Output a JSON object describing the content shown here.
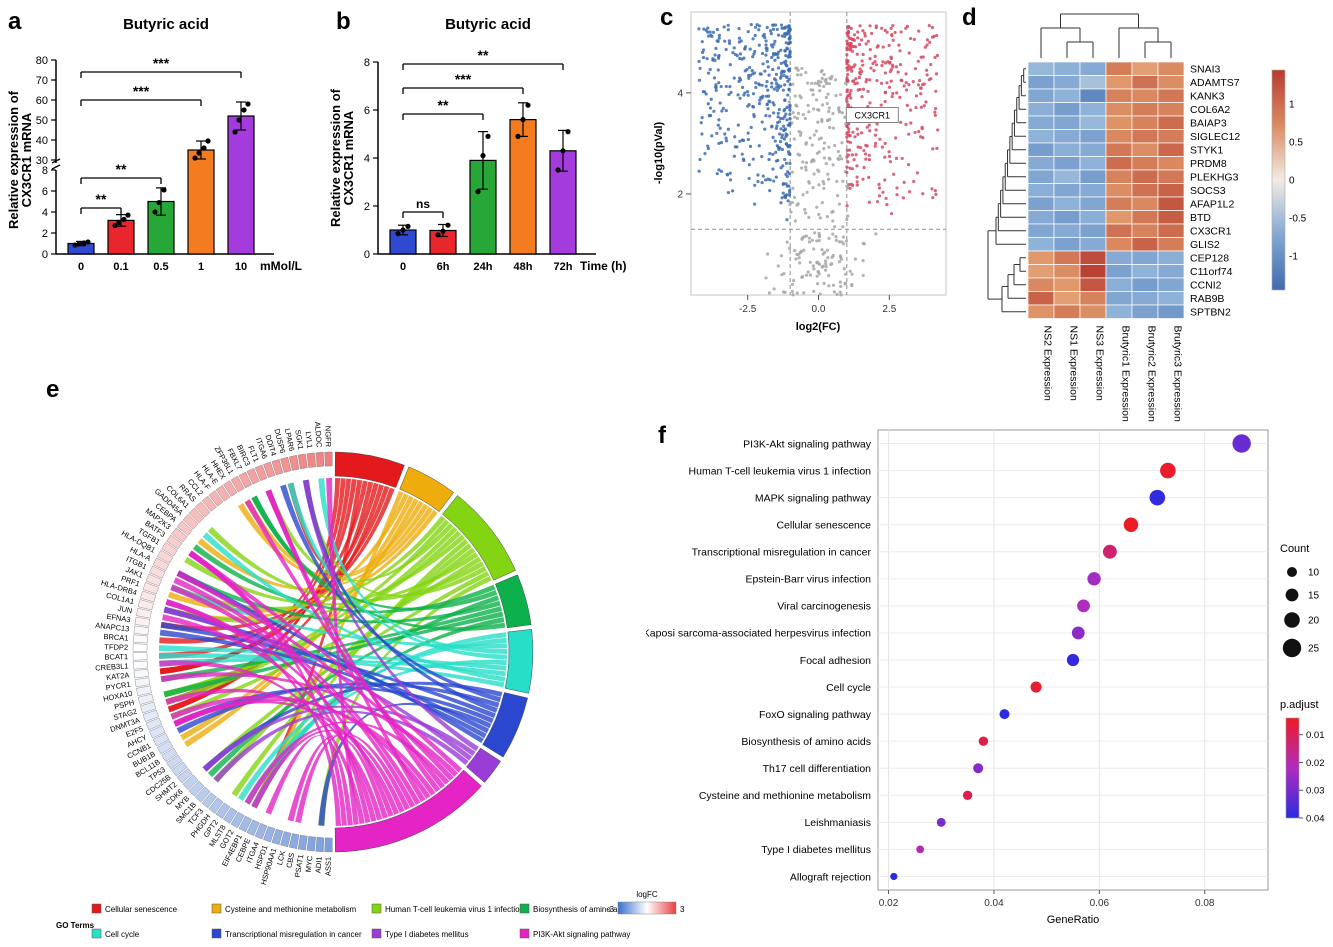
{
  "panel_labels": {
    "a": "a",
    "b": "b",
    "c": "c",
    "d": "d",
    "e": "e",
    "f": "f"
  },
  "chart_data": [
    {
      "id": "a",
      "type": "bar",
      "title": "Butyric acid",
      "ylabel_lines": [
        "Relative expression of",
        "CX3CR1 mRNA"
      ],
      "xlabel": "mMol/L",
      "categories": [
        "0",
        "0.1",
        "0.5",
        "1",
        "10"
      ],
      "values": [
        1.0,
        3.2,
        5.0,
        35,
        52
      ],
      "errors": [
        0.2,
        0.55,
        1.3,
        4.5,
        7
      ],
      "points": [
        [
          0.85,
          0.95,
          1.05,
          1.15
        ],
        [
          2.7,
          3.0,
          3.3,
          3.7
        ],
        [
          4.0,
          4.9,
          6.1
        ],
        [
          31,
          33.5,
          36,
          39.5
        ],
        [
          44,
          50,
          55,
          58
        ]
      ],
      "bar_colors": [
        "#2f49d1",
        "#e8262c",
        "#27a737",
        "#f47c20",
        "#a43bdd"
      ],
      "axis_break": {
        "lower": [
          0,
          8
        ],
        "upper": [
          30,
          80
        ],
        "lower_ticks": [
          0,
          2,
          4,
          6,
          8
        ],
        "upper_ticks": [
          30,
          40,
          50,
          60,
          70,
          80
        ]
      },
      "significance": [
        {
          "from": 0,
          "to": 1,
          "label": "**"
        },
        {
          "from": 0,
          "to": 2,
          "label": "**"
        },
        {
          "from": 0,
          "to": 3,
          "label": "***"
        },
        {
          "from": 0,
          "to": 4,
          "label": "***"
        }
      ]
    },
    {
      "id": "b",
      "type": "bar",
      "title": "Butyric acid",
      "ylabel_lines": [
        "Relative expression of",
        "CX3CR1 mRNA"
      ],
      "xlabel": "Time (h)",
      "categories": [
        "0",
        "6h",
        "24h",
        "48h",
        "72h"
      ],
      "values": [
        1.0,
        0.98,
        3.9,
        5.6,
        4.3
      ],
      "errors": [
        0.2,
        0.25,
        1.2,
        0.7,
        0.85
      ],
      "points": [
        [
          0.85,
          1.0,
          1.15
        ],
        [
          0.8,
          0.95,
          1.2
        ],
        [
          2.6,
          4.1,
          4.9
        ],
        [
          4.9,
          5.6,
          6.2
        ],
        [
          3.5,
          4.3,
          5.1
        ]
      ],
      "bar_colors": [
        "#2f49d1",
        "#e8262c",
        "#27a737",
        "#f47c20",
        "#a43bdd"
      ],
      "ylim": [
        0,
        8
      ],
      "y_ticks": [
        0,
        2,
        4,
        6,
        8
      ],
      "significance": [
        {
          "from": 0,
          "to": 1,
          "label": "ns"
        },
        {
          "from": 0,
          "to": 2,
          "label": "**"
        },
        {
          "from": 0,
          "to": 3,
          "label": "***"
        },
        {
          "from": 0,
          "to": 4,
          "label": "**"
        }
      ]
    },
    {
      "id": "c",
      "type": "scatter",
      "subtype": "volcano",
      "xlabel": "log2(FC)",
      "ylabel": "-log10(pVal)",
      "xlim": [
        -4.5,
        4.5
      ],
      "ylim": [
        0,
        5.6
      ],
      "x_ticks": [
        -2.5,
        0.0,
        2.5
      ],
      "x_tick_labels": [
        "-2.5",
        "0.0",
        "2.5"
      ],
      "y_ticks": [
        2,
        4
      ],
      "thresholds": {
        "x": [
          -1,
          1
        ],
        "y": 1.3
      },
      "annotation": {
        "label": "CX3CR1",
        "x": 1.05,
        "y": 3.55
      },
      "groups": [
        {
          "name": "down",
          "color": "#3d6cb3",
          "count": 420
        },
        {
          "name": "up",
          "color": "#d44a62",
          "count": 330
        },
        {
          "name": "ns",
          "color": "#a6a6a6",
          "count": 280
        }
      ],
      "seed": 42
    },
    {
      "id": "d",
      "type": "heatmap",
      "rows": [
        "SNAI3",
        "ADAMTS7",
        "KANK3",
        "COL6A2",
        "BAIAP3",
        "SIGLEC12",
        "STYK1",
        "PRDM8",
        "PLEKHG3",
        "SOCS3",
        "AFAP1L2",
        "BTD",
        "CX3CR1",
        "GLIS2",
        "CEP128",
        "C11orf74",
        "CCNI2",
        "RAB9B",
        "SPTBN2"
      ],
      "columns": [
        "NS2 Expression",
        "NS1 Expression",
        "NS3 Expression",
        "Brutyric1 Expression",
        "Brutyric2 Expression",
        "Brutyric3 Expression"
      ],
      "matrix": [
        [
          -0.55,
          -0.62,
          -0.7,
          0.85,
          0.55,
          0.72
        ],
        [
          -0.8,
          -0.7,
          -0.45,
          0.6,
          0.95,
          0.7
        ],
        [
          -0.75,
          -0.6,
          -1.1,
          0.8,
          0.75,
          0.9
        ],
        [
          -0.65,
          -0.85,
          -0.6,
          0.7,
          0.85,
          0.8
        ],
        [
          -0.7,
          -0.75,
          -0.55,
          0.65,
          0.8,
          1.0
        ],
        [
          -0.6,
          -0.7,
          -0.8,
          0.75,
          0.9,
          0.85
        ],
        [
          -0.85,
          -0.65,
          -0.7,
          0.9,
          0.7,
          1.05
        ],
        [
          -0.7,
          -0.8,
          -0.6,
          1.0,
          0.85,
          0.75
        ],
        [
          -0.75,
          -0.55,
          -0.85,
          0.8,
          1.0,
          0.9
        ],
        [
          -0.65,
          -0.75,
          -0.7,
          0.7,
          0.95,
          1.1
        ],
        [
          -0.8,
          -0.6,
          -0.75,
          0.85,
          0.75,
          1.2
        ],
        [
          -0.7,
          -0.85,
          -0.65,
          0.6,
          0.9,
          1.15
        ],
        [
          -0.75,
          -0.7,
          -0.8,
          0.95,
          0.8,
          1.0
        ],
        [
          -0.6,
          -0.8,
          -0.7,
          0.75,
          1.1,
          0.85
        ],
        [
          0.6,
          0.9,
          1.3,
          -0.7,
          -0.75,
          -0.65
        ],
        [
          0.55,
          0.7,
          1.4,
          -0.8,
          -0.6,
          -0.7
        ],
        [
          0.75,
          0.6,
          1.2,
          -0.65,
          -0.85,
          -0.75
        ],
        [
          1.1,
          0.55,
          0.8,
          -0.75,
          -0.7,
          -0.6
        ],
        [
          0.65,
          0.85,
          0.7,
          -0.6,
          -0.8,
          -0.9
        ]
      ],
      "colorbar_ticks": [
        1,
        0.5,
        0,
        -0.5,
        -1
      ],
      "color_low": "#3a67ae",
      "color_mid": "#f2ece3",
      "color_high": "#b5372e"
    },
    {
      "id": "e",
      "type": "chord",
      "legend_title": "GO Terms",
      "genes": [
        "NGFR",
        "ALDOC",
        "LYL1",
        "SGK1",
        "LPAR6",
        "DUSP6",
        "DDIT4",
        "ITGA6",
        "FLT1",
        "BIRC3",
        "FBXL7",
        "ZFP36L1",
        "HHEX",
        "HLA-E",
        "HLA-F",
        "CCL2",
        "RRAS",
        "COL6A1",
        "GADD45A",
        "CEBPA",
        "MAP2K3",
        "BATF3",
        "TGFB1",
        "HLA-DQB1",
        "HLA-A",
        "ITGB1",
        "JAK1",
        "PRF1",
        "HLA-DRB4",
        "COL1A1",
        "JUN",
        "EFNA3",
        "ANAPC13",
        "BRCA1",
        "TFDP2",
        "BCAT1",
        "CREB3L1",
        "KAT2A",
        "PYCR1",
        "HOXA10",
        "PSPH",
        "STAG2",
        "DNMT3A",
        "E2F5",
        "AHCY",
        "CCNB1",
        "BUB1B",
        "BCL11B",
        "TP53",
        "CDC25B",
        "SHMT2",
        "CDK6",
        "MYB",
        "SMC1B",
        "TCF3",
        "PHGDH",
        "GPT2",
        "MLST8",
        "GOT2",
        "EIF4EBP1",
        "CEBPE",
        "ITGA4",
        "HSPD1",
        "HSP90AA1",
        "LCK",
        "CBS",
        "PSAT1",
        "MYC",
        "ADI1",
        "ASS1"
      ],
      "logfc_range": [
        2.0,
        -2.0
      ],
      "pathways": [
        {
          "name": "Cellular senescence",
          "color": "#e3191c",
          "frac": 0.12,
          "links": 11
        },
        {
          "name": "Cysteine and methionine metabolism",
          "color": "#eead0c",
          "frac": 0.09,
          "links": 8
        },
        {
          "name": "Human T-cell leukemia virus 1 infection",
          "color": "#83d412",
          "frac": 0.16,
          "links": 15
        },
        {
          "name": "Biosynthesis of amino acids",
          "color": "#0cb14b",
          "frac": 0.09,
          "links": 8
        },
        {
          "name": "Cell cycle",
          "color": "#27dec8",
          "frac": 0.11,
          "links": 10
        },
        {
          "name": "Transcriptional misregulation in cancer",
          "color": "#2c47cf",
          "frac": 0.11,
          "links": 10
        },
        {
          "name": "Type I diabetes mellitus",
          "color": "#9a3dd6",
          "frac": 0.05,
          "links": 4
        },
        {
          "name": "PI3K-Akt signaling pathway",
          "color": "#e424c4",
          "frac": 0.27,
          "links": 24
        }
      ],
      "logfc_legend": {
        "title": "logFC",
        "min_label": "-3",
        "max_label": "3"
      },
      "seed": 11
    },
    {
      "id": "f",
      "type": "scatter",
      "subtype": "dotplot",
      "xlabel": "GeneRatio",
      "x_ticks": [
        0.02,
        0.04,
        0.06,
        0.08
      ],
      "x_tick_labels": [
        "0.02",
        "0.04",
        "0.06",
        "0.08"
      ],
      "xlim": [
        0.018,
        0.092
      ],
      "categories": [
        "PI3K-Akt signaling pathway",
        "Human T-cell leukemia virus 1 infection",
        "MAPK signaling pathway",
        "Cellular senescence",
        "Transcriptional misregulation in cancer",
        "Epstein-Barr virus infection",
        "Viral carcinogenesis",
        "Kaposi sarcoma-associated herpesvirus infection",
        "Focal adhesion",
        "Cell cycle",
        "FoxO signaling pathway",
        "Biosynthesis of amino acids",
        "Th17 cell differentiation",
        "Cysteine and methionine metabolism",
        "Leishmaniasis",
        "Type I diabetes mellitus",
        "Allograft rejection"
      ],
      "gene_ratio": [
        0.087,
        0.073,
        0.071,
        0.066,
        0.062,
        0.059,
        0.057,
        0.056,
        0.055,
        0.048,
        0.042,
        0.038,
        0.037,
        0.035,
        0.03,
        0.026,
        0.021
      ],
      "count": [
        25,
        20,
        20,
        18,
        17,
        16,
        15,
        15,
        14,
        12,
        10,
        9,
        10,
        9,
        8,
        6,
        5
      ],
      "p_adjust": [
        0.032,
        0.005,
        0.039,
        0.004,
        0.013,
        0.024,
        0.022,
        0.027,
        0.039,
        0.006,
        0.04,
        0.008,
        0.028,
        0.009,
        0.029,
        0.02,
        0.04
      ],
      "legend": {
        "count_title": "Count",
        "count_values": [
          10,
          15,
          20,
          25
        ],
        "p_title": "p.adjust",
        "p_ticks": [
          "0.01",
          "0.02",
          "0.03",
          "0.04"
        ]
      }
    }
  ]
}
